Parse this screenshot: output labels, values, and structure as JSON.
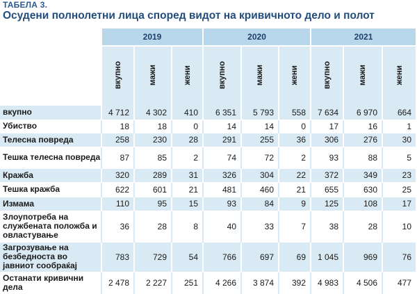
{
  "label": "ТАБЕЛА 3.",
  "title": "Осудени полнолетни лица според видот на кривичното дело и полот",
  "years": [
    "2019",
    "2020",
    "2021"
  ],
  "subcols": [
    "вкупно",
    "мажи",
    "жени"
  ],
  "rows": [
    {
      "label": "вкупно",
      "values": [
        "4 712",
        "4 302",
        "410",
        "6 351",
        "5 793",
        "558",
        "7 634",
        "6 970",
        "664"
      ]
    },
    {
      "label": "Убиство",
      "values": [
        "18",
        "18",
        "0",
        "14",
        "14",
        "0",
        "17",
        "16",
        "1"
      ]
    },
    {
      "label": "Телесна повреда",
      "values": [
        "258",
        "230",
        "28",
        "291",
        "255",
        "36",
        "306",
        "276",
        "30"
      ]
    },
    {
      "label": "Тешка телесна повреда",
      "values": [
        "87",
        "85",
        "2",
        "74",
        "72",
        "2",
        "93",
        "88",
        "5"
      ]
    },
    {
      "label": "Кражба",
      "values": [
        "320",
        "289",
        "31",
        "326",
        "304",
        "22",
        "372",
        "349",
        "23"
      ]
    },
    {
      "label": "Тешка кражба",
      "values": [
        "622",
        "601",
        "21",
        "481",
        "460",
        "21",
        "655",
        "630",
        "25"
      ]
    },
    {
      "label": "Измама",
      "values": [
        "110",
        "95",
        "15",
        "93",
        "84",
        "9",
        "125",
        "108",
        "17"
      ]
    },
    {
      "label": "Злоупотреба на службената положба и овластување",
      "values": [
        "36",
        "28",
        "8",
        "40",
        "33",
        "7",
        "38",
        "28",
        "10"
      ]
    },
    {
      "label": "Загрозување на безбедноста во јавниот сообраќај",
      "values": [
        "783",
        "729",
        "54",
        "766",
        "697",
        "69",
        "1 045",
        "969",
        "76"
      ]
    },
    {
      "label": "Останати кривични дела",
      "values": [
        "2 478",
        "2 227",
        "251",
        "4 266",
        "3 874",
        "392",
        "4 983",
        "4 506",
        "477"
      ]
    }
  ]
}
